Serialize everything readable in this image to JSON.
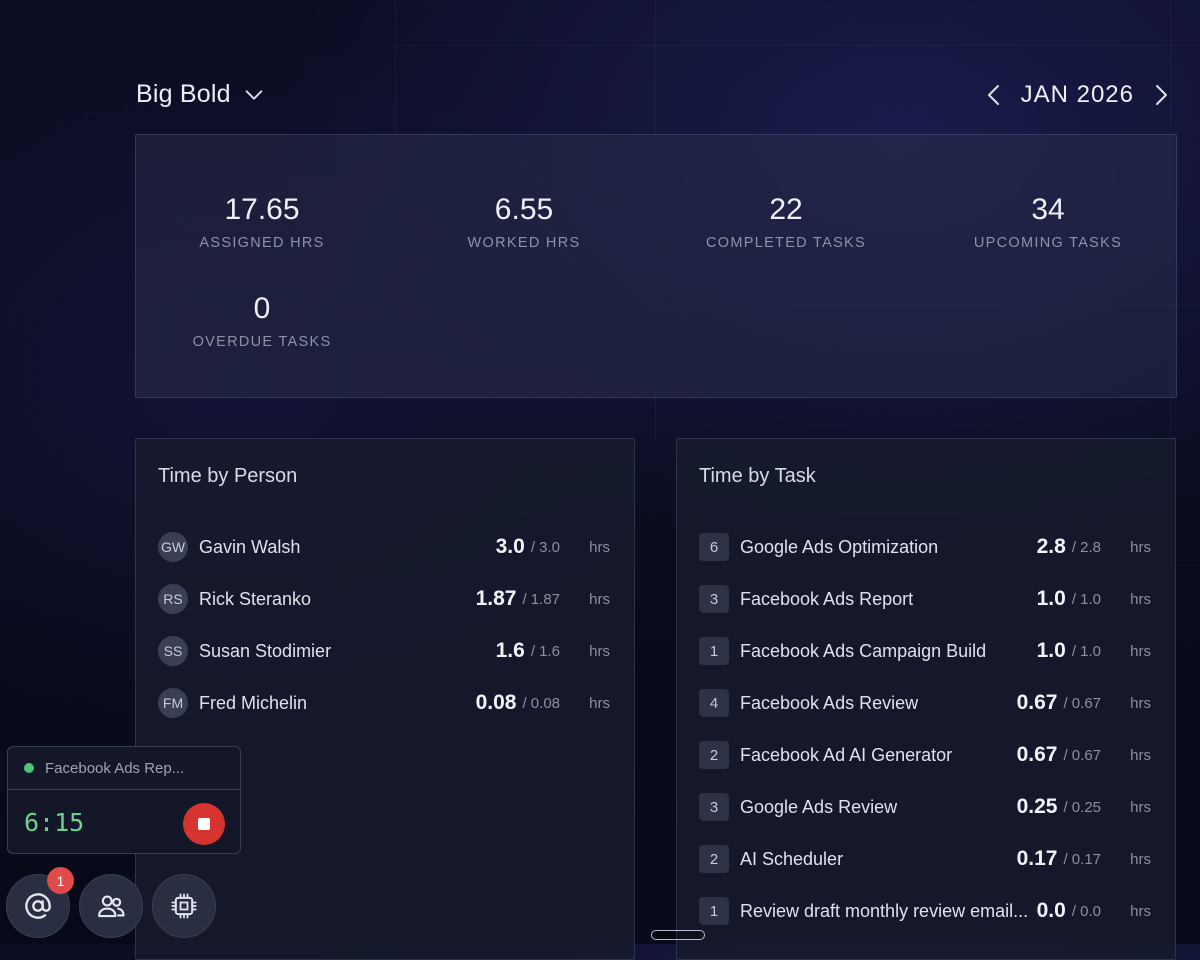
{
  "header": {
    "workspace_name": "Big Bold",
    "month_label": "JAN 2026"
  },
  "stats": [
    {
      "value": "17.65",
      "label": "ASSIGNED HRS"
    },
    {
      "value": "6.55",
      "label": "WORKED HRS"
    },
    {
      "value": "22",
      "label": "COMPLETED TASKS"
    },
    {
      "value": "34",
      "label": "UPCOMING TASKS"
    },
    {
      "value": "0",
      "label": "OVERDUE TASKS"
    }
  ],
  "time_by_person": {
    "title": "Time by Person",
    "unit": "hrs",
    "rows": [
      {
        "initials": "GW",
        "name": "Gavin Walsh",
        "value": "3.0",
        "total": "/ 3.0"
      },
      {
        "initials": "RS",
        "name": "Rick Steranko",
        "value": "1.87",
        "total": "/ 1.87"
      },
      {
        "initials": "SS",
        "name": "Susan Stodimier",
        "value": "1.6",
        "total": "/ 1.6"
      },
      {
        "initials": "FM",
        "name": "Fred Michelin",
        "value": "0.08",
        "total": "/ 0.08"
      }
    ]
  },
  "time_by_task": {
    "title": "Time by Task",
    "unit": "hrs",
    "rows": [
      {
        "count": "6",
        "name": "Google Ads Optimization",
        "value": "2.8",
        "total": "/ 2.8"
      },
      {
        "count": "3",
        "name": "Facebook Ads Report",
        "value": "1.0",
        "total": "/ 1.0"
      },
      {
        "count": "1",
        "name": "Facebook Ads Campaign Build",
        "value": "1.0",
        "total": "/ 1.0"
      },
      {
        "count": "4",
        "name": "Facebook Ads Review",
        "value": "0.67",
        "total": "/ 0.67"
      },
      {
        "count": "2",
        "name": "Facebook Ad AI Generator",
        "value": "0.67",
        "total": "/ 0.67"
      },
      {
        "count": "3",
        "name": "Google Ads Review",
        "value": "0.25",
        "total": "/ 0.25"
      },
      {
        "count": "2",
        "name": "AI Scheduler",
        "value": "0.17",
        "total": "/ 0.17"
      },
      {
        "count": "1",
        "name": "Review draft monthly review email...",
        "value": "0.0",
        "total": "/ 0.0"
      }
    ]
  },
  "timer": {
    "task": "Facebook Ads Rep...",
    "time": "6:15",
    "status_color": "#4cc476"
  },
  "dock": {
    "mentions_badge": "1",
    "icons": [
      "at-sign-icon",
      "users-icon",
      "cpu-chip-icon"
    ]
  }
}
